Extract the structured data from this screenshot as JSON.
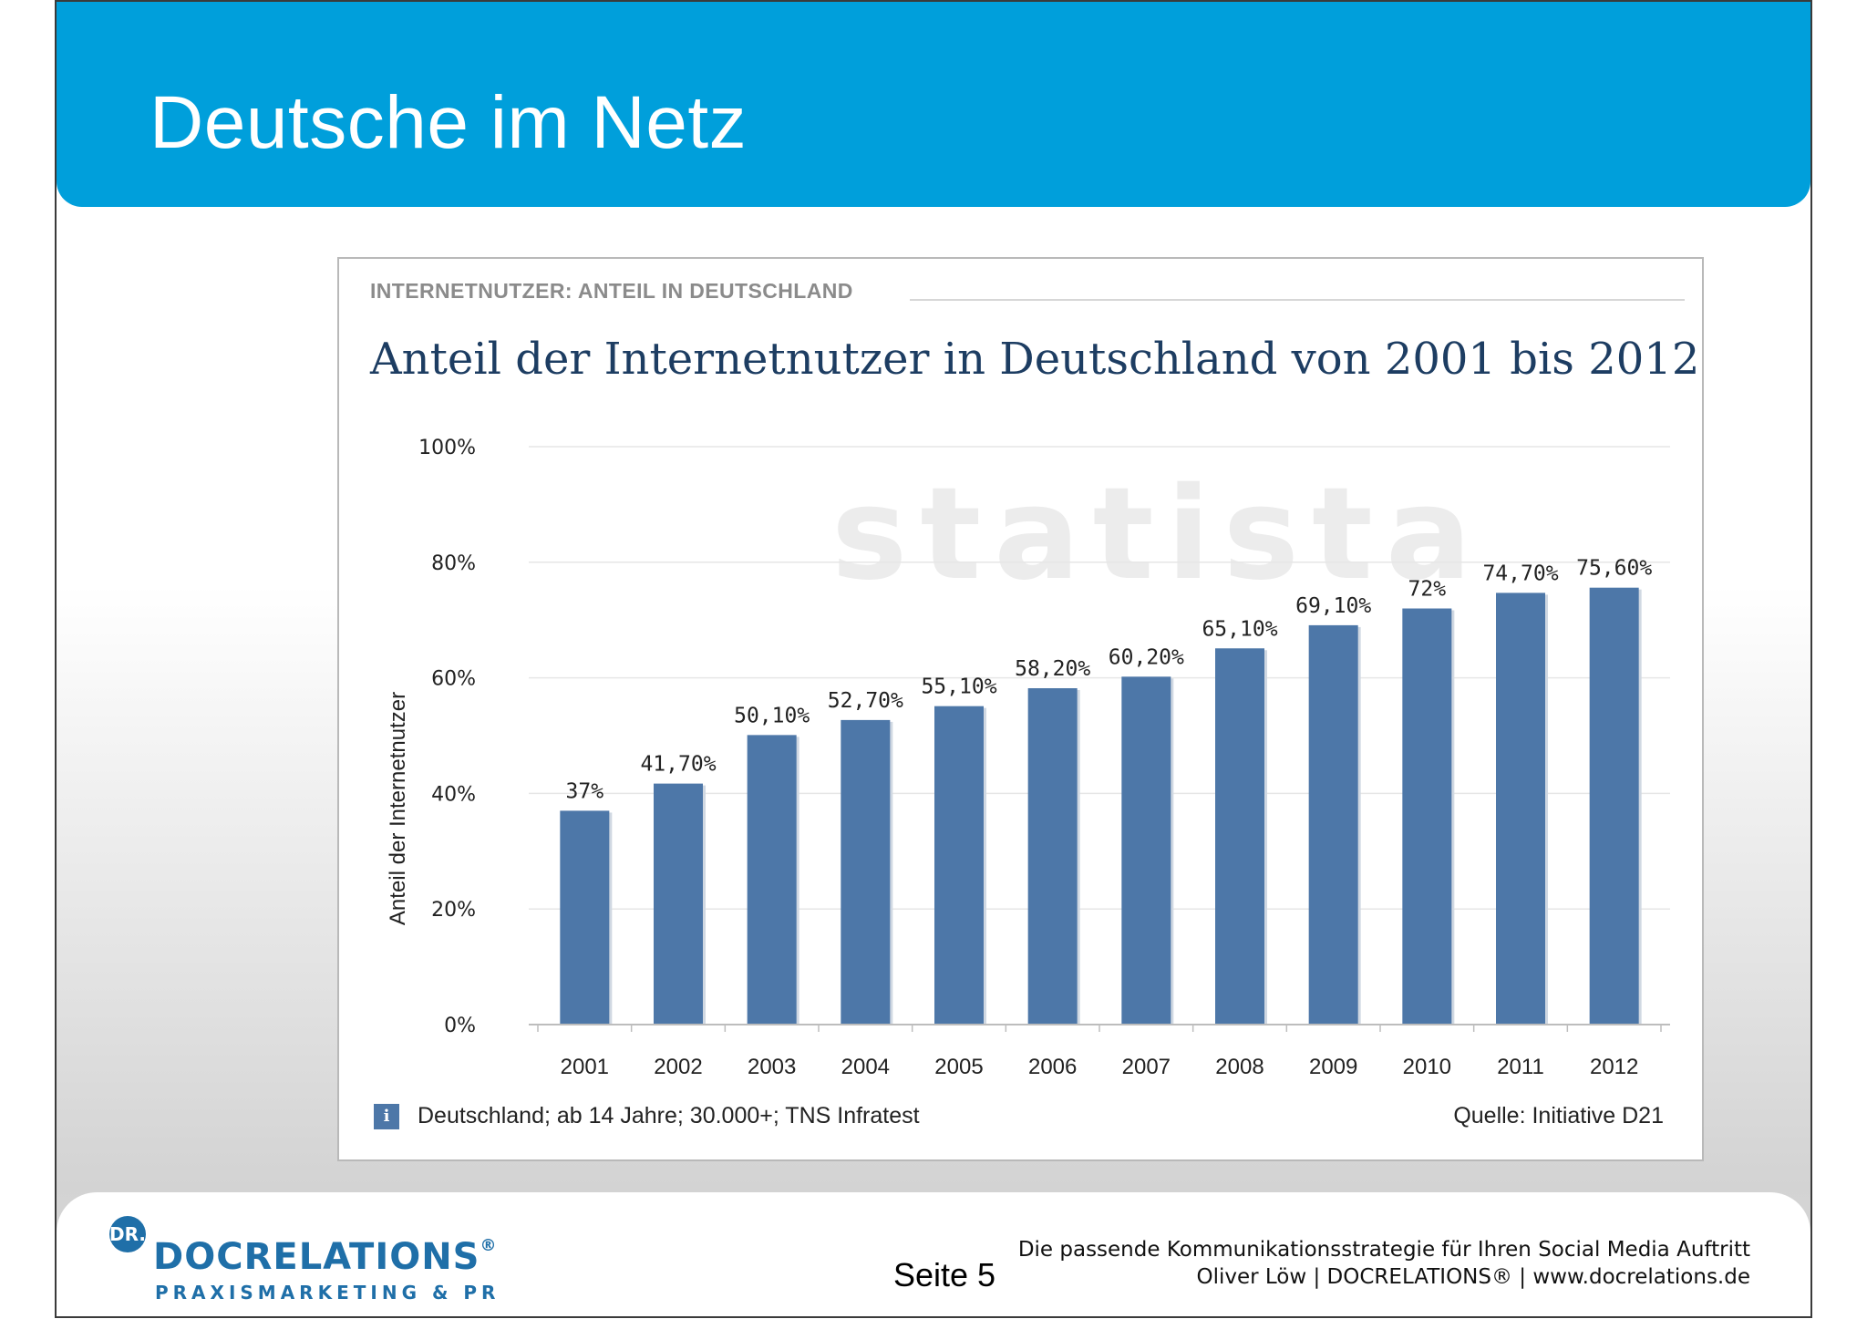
{
  "slide": {
    "title": "Deutsche im Netz"
  },
  "card": {
    "header": "INTERNETNUTZER: ANTEIL IN DEUTSCHLAND",
    "info_icon": "i",
    "info_text": "Deutschland; ab 14 Jahre; 30.000+; TNS Infratest",
    "source_text": "Quelle: Initiative D21"
  },
  "chart_data": {
    "type": "bar",
    "title": "Anteil der Internetnutzer in Deutschland von 2001 bis 2012",
    "xlabel": "",
    "ylabel": "Anteil der Internetnutzer",
    "categories": [
      "2001",
      "2002",
      "2003",
      "2004",
      "2005",
      "2006",
      "2007",
      "2008",
      "2009",
      "2010",
      "2011",
      "2012"
    ],
    "values": [
      37,
      41.7,
      50.1,
      52.7,
      55.1,
      58.2,
      60.2,
      65.1,
      69.1,
      72,
      74.7,
      75.6
    ],
    "value_labels": [
      "37%",
      "41,70%",
      "50,10%",
      "52,70%",
      "55,10%",
      "58,20%",
      "60,20%",
      "65,10%",
      "69,10%",
      "72%",
      "74,70%",
      "75,60%"
    ],
    "ylim": [
      0,
      100
    ],
    "yticks": [
      0,
      20,
      40,
      60,
      80,
      100
    ],
    "ytick_labels": [
      "0%",
      "20%",
      "40%",
      "60%",
      "80%",
      "100%"
    ],
    "grid": true,
    "bar_color": "#4d77a8",
    "watermark": "statista"
  },
  "footer": {
    "logo_badge": "DR.",
    "logo_main": "DOCRELATIONS",
    "logo_reg": "®",
    "logo_sub": "PRAXISMARKETING & PR",
    "page_number": "Seite 5",
    "tagline": "Die passende Kommunikationsstrategie für Ihren Social Media Auftritt",
    "credit": "Oliver Löw | DOCRELATIONS® | www.docrelations.de"
  }
}
